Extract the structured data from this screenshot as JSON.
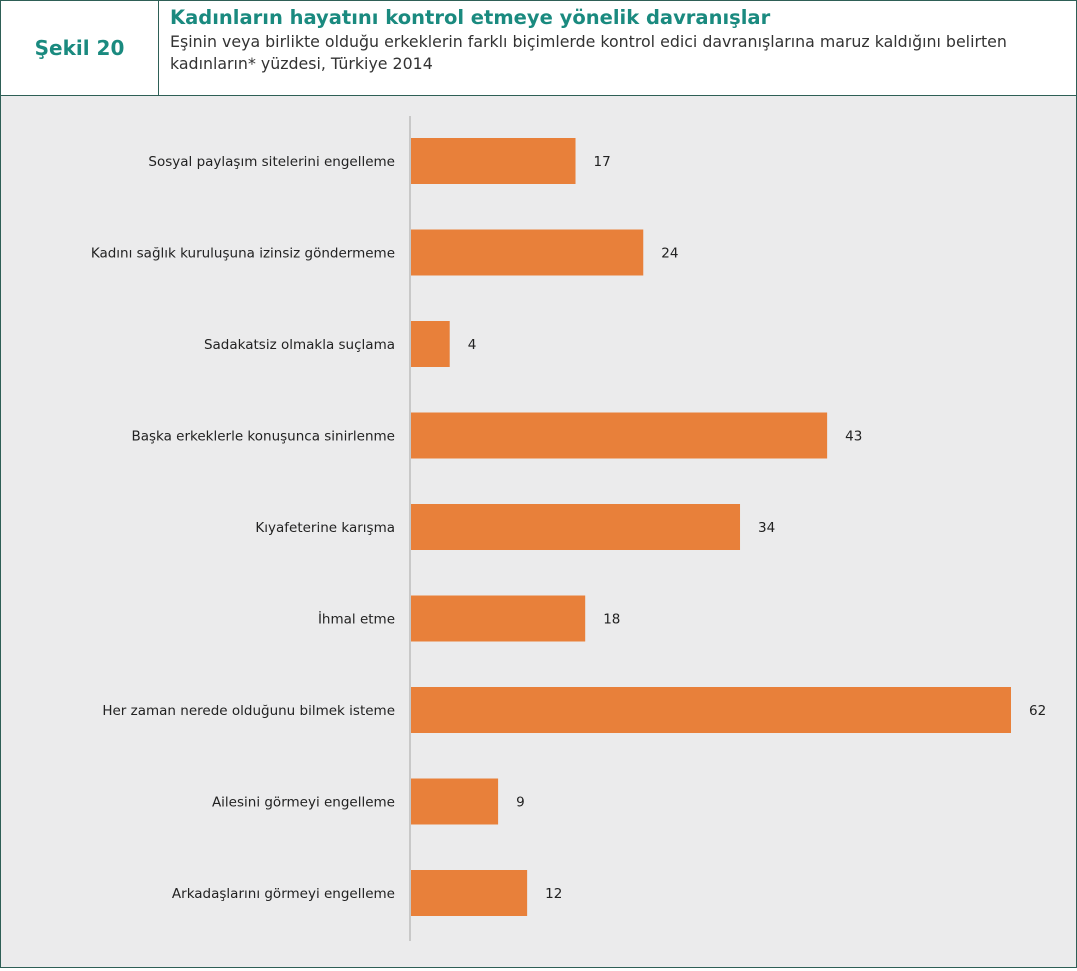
{
  "header": {
    "figure_label": "Şekil 20",
    "title": "Kadınların hayatını kontrol etmeye yönelik davranışlar",
    "subtitle": "Eşinin veya birlikte olduğu erkeklerin farklı biçimlerde kontrol edici davranışlarına maruz kaldığını belirten kadınların* yüzdesi, Türkiye 2014"
  },
  "colors": {
    "bar": "#e8803a",
    "accent": "#1a8a7f",
    "border": "#2e5f56",
    "plot_bg": "#ebebec",
    "axis": "#c8c8c8"
  },
  "chart_data": {
    "type": "bar",
    "orientation": "horizontal",
    "title": "Kadınların hayatını kontrol etmeye yönelik davranışlar",
    "xlabel": "",
    "ylabel": "",
    "grid": false,
    "legend": "none",
    "xlim": [
      0,
      62
    ],
    "categories": [
      "Sosyal paylaşım sitelerini engelleme",
      "Kadını sağlık kuruluşuna izinsiz göndermeme",
      "Sadakatsiz olmakla suçlama",
      "Başka erkeklerle konuşunca sinirlenme",
      "Kıyafeterine karışma",
      "İhmal etme",
      "Her zaman nerede olduğunu bilmek isteme",
      "Ailesini görmeyi engelleme",
      "Arkadaşlarını görmeyi engelleme"
    ],
    "values": [
      17,
      24,
      4,
      43,
      34,
      18,
      62,
      9,
      12
    ]
  }
}
